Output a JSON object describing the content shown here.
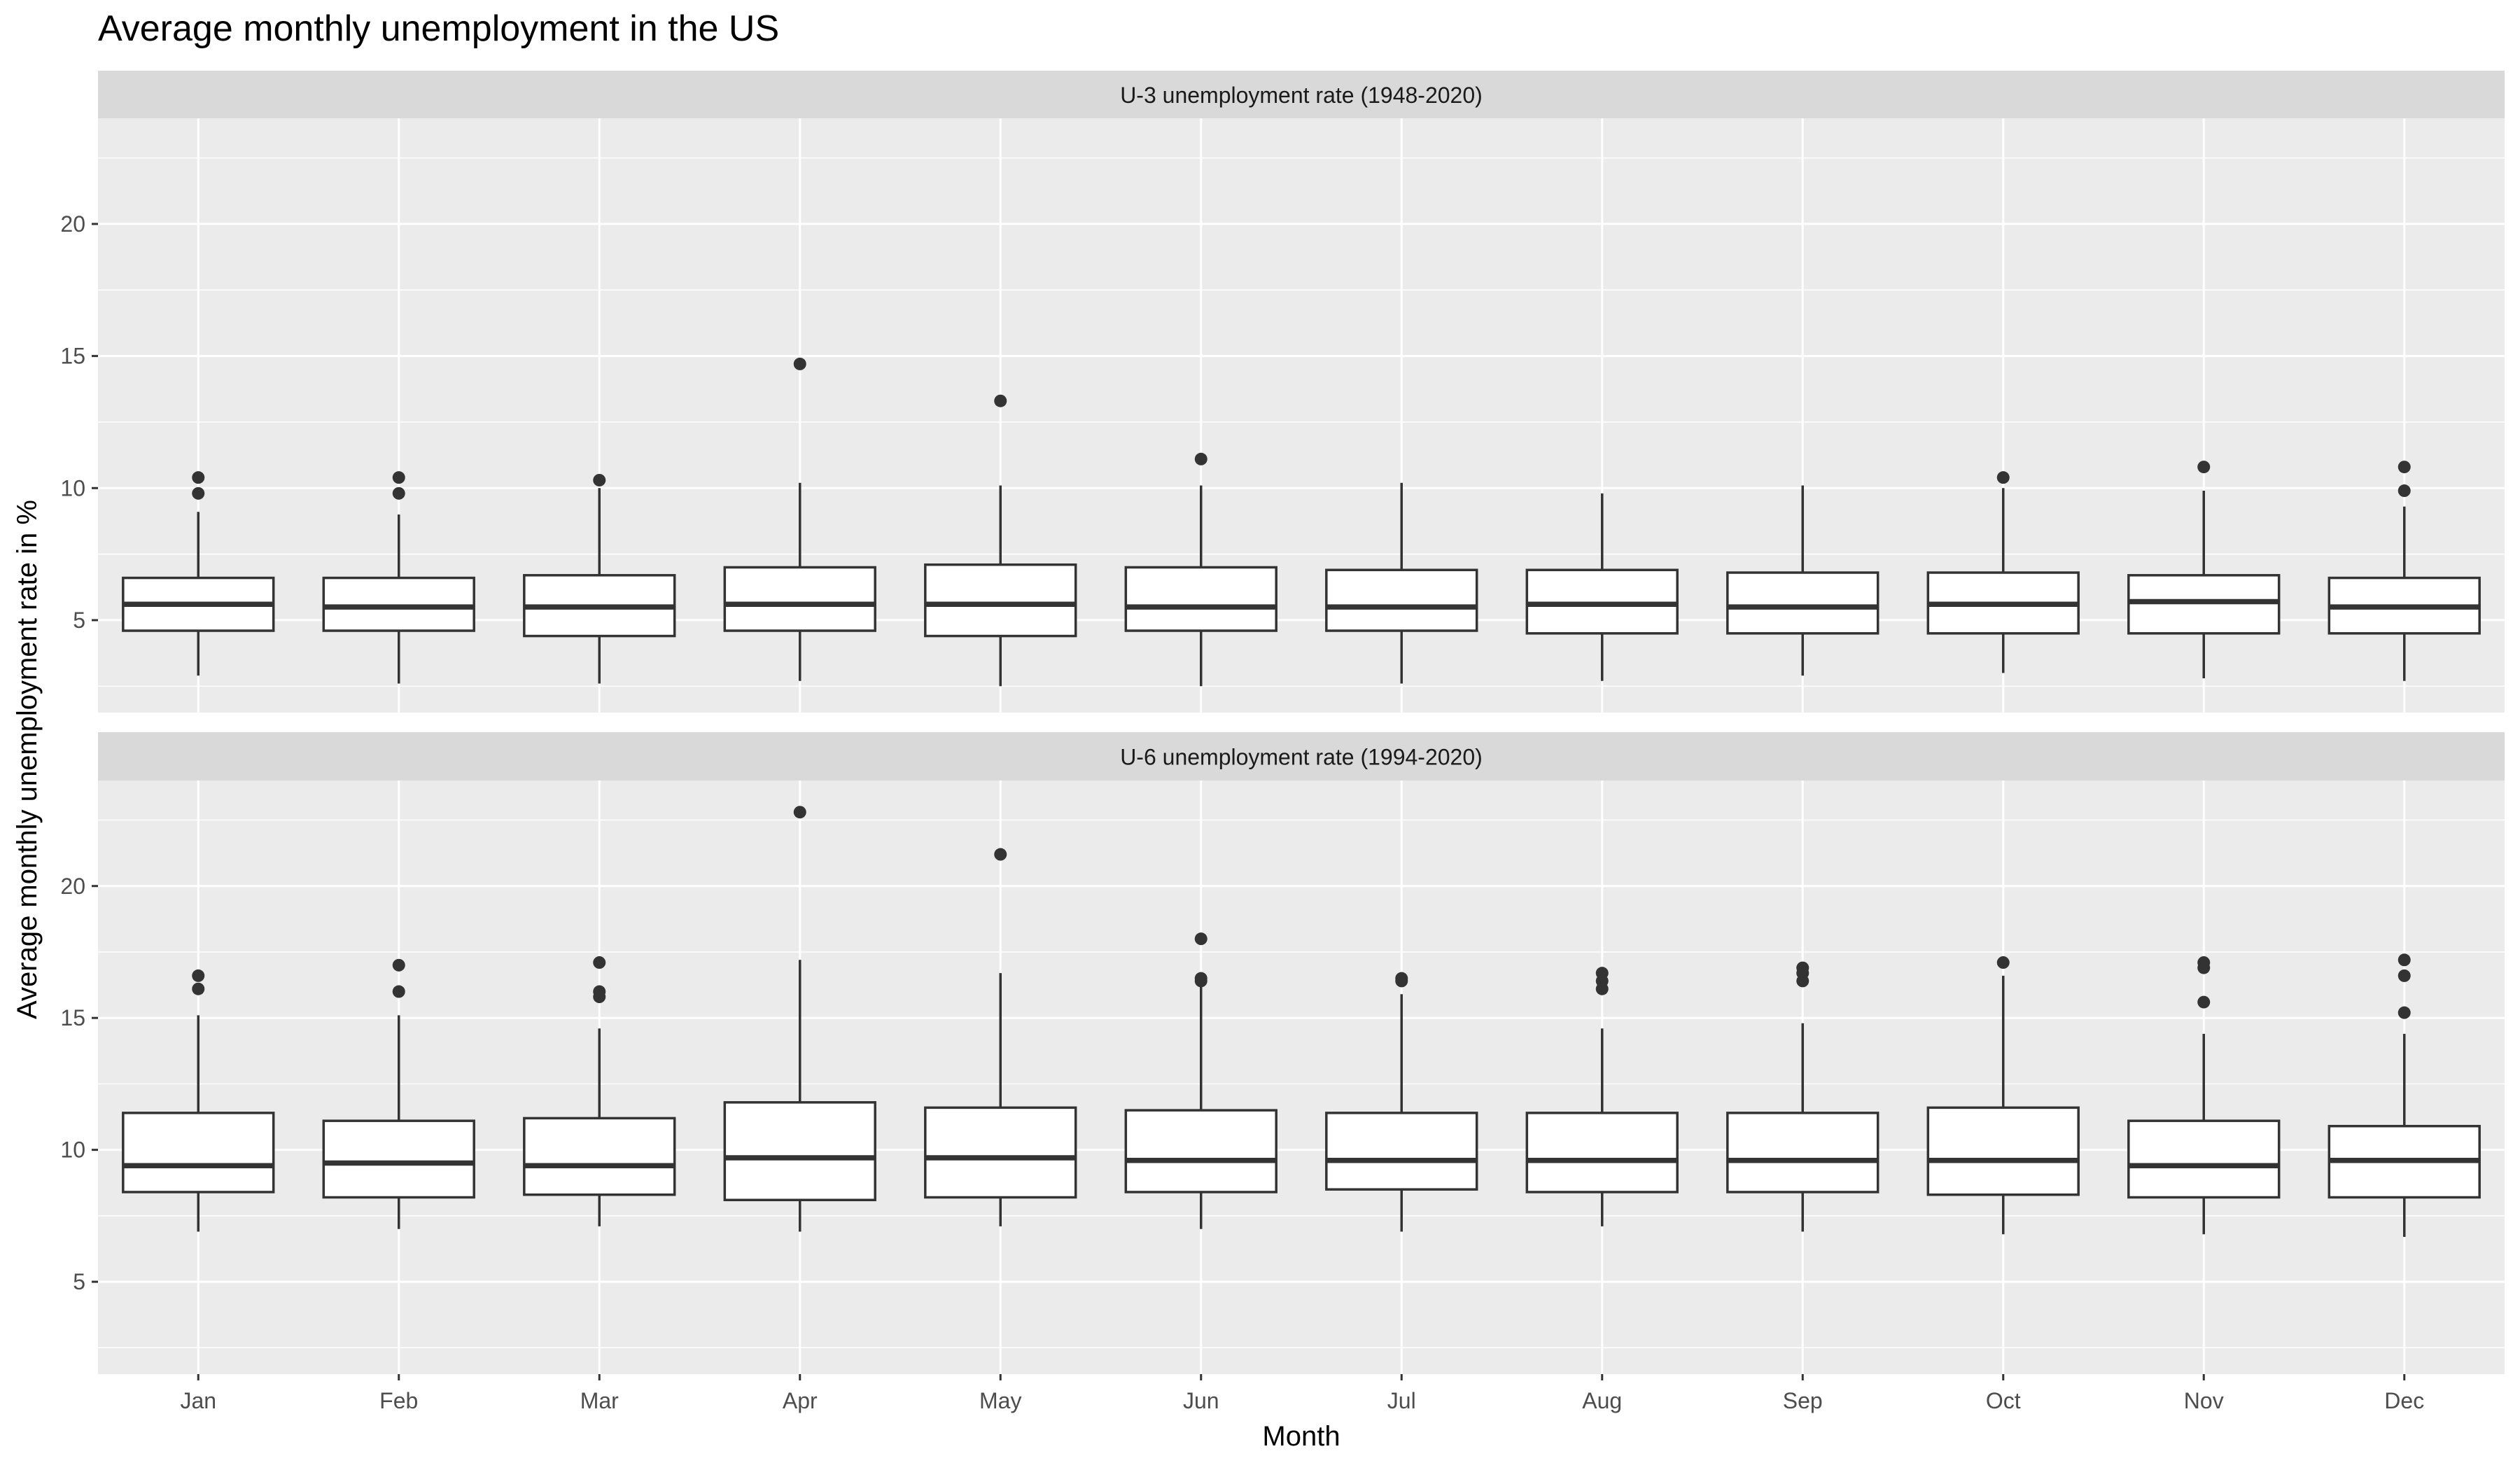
{
  "chart_data": {
    "type": "boxplot",
    "title": "Average monthly unemployment in the US",
    "xlabel": "Month",
    "ylabel": "Average monthly unemployment rate in %",
    "categories": [
      "Jan",
      "Feb",
      "Mar",
      "Apr",
      "May",
      "Jun",
      "Jul",
      "Aug",
      "Sep",
      "Oct",
      "Nov",
      "Dec"
    ],
    "ylim": [
      1.5,
      24
    ],
    "yticks": [
      5,
      10,
      15,
      20
    ],
    "grid": true,
    "panels": [
      {
        "strip_label": "U-3 unemployment rate (1948-2020)",
        "boxes": [
          {
            "q1": 4.6,
            "median": 5.6,
            "q3": 6.6,
            "whisker_low": 2.9,
            "whisker_high": 9.1,
            "outliers": [
              9.8,
              10.4
            ]
          },
          {
            "q1": 4.6,
            "median": 5.5,
            "q3": 6.6,
            "whisker_low": 2.6,
            "whisker_high": 9.0,
            "outliers": [
              9.8,
              10.4
            ]
          },
          {
            "q1": 4.4,
            "median": 5.5,
            "q3": 6.7,
            "whisker_low": 2.6,
            "whisker_high": 10.0,
            "outliers": [
              10.3
            ]
          },
          {
            "q1": 4.6,
            "median": 5.6,
            "q3": 7.0,
            "whisker_low": 2.7,
            "whisker_high": 10.2,
            "outliers": [
              14.7
            ]
          },
          {
            "q1": 4.4,
            "median": 5.6,
            "q3": 7.1,
            "whisker_low": 2.5,
            "whisker_high": 10.1,
            "outliers": [
              13.3
            ]
          },
          {
            "q1": 4.6,
            "median": 5.5,
            "q3": 7.0,
            "whisker_low": 2.5,
            "whisker_high": 10.1,
            "outliers": [
              11.1
            ]
          },
          {
            "q1": 4.6,
            "median": 5.5,
            "q3": 6.9,
            "whisker_low": 2.6,
            "whisker_high": 10.2,
            "outliers": []
          },
          {
            "q1": 4.5,
            "median": 5.6,
            "q3": 6.9,
            "whisker_low": 2.7,
            "whisker_high": 9.8,
            "outliers": []
          },
          {
            "q1": 4.5,
            "median": 5.5,
            "q3": 6.8,
            "whisker_low": 2.9,
            "whisker_high": 10.1,
            "outliers": []
          },
          {
            "q1": 4.5,
            "median": 5.6,
            "q3": 6.8,
            "whisker_low": 3.0,
            "whisker_high": 10.0,
            "outliers": [
              10.4
            ]
          },
          {
            "q1": 4.5,
            "median": 5.7,
            "q3": 6.7,
            "whisker_low": 2.8,
            "whisker_high": 9.9,
            "outliers": [
              10.8
            ]
          },
          {
            "q1": 4.5,
            "median": 5.5,
            "q3": 6.6,
            "whisker_low": 2.7,
            "whisker_high": 9.3,
            "outliers": [
              9.9,
              10.8
            ]
          }
        ]
      },
      {
        "strip_label": "U-6 unemployment rate (1994-2020)",
        "boxes": [
          {
            "q1": 8.4,
            "median": 9.4,
            "q3": 11.4,
            "whisker_low": 6.9,
            "whisker_high": 15.1,
            "outliers": [
              16.1,
              16.6
            ]
          },
          {
            "q1": 8.2,
            "median": 9.5,
            "q3": 11.1,
            "whisker_low": 7.0,
            "whisker_high": 15.1,
            "outliers": [
              16.0,
              17.0
            ]
          },
          {
            "q1": 8.3,
            "median": 9.4,
            "q3": 11.2,
            "whisker_low": 7.1,
            "whisker_high": 14.6,
            "outliers": [
              15.8,
              16.0,
              17.1
            ]
          },
          {
            "q1": 8.1,
            "median": 9.7,
            "q3": 11.8,
            "whisker_low": 6.9,
            "whisker_high": 17.2,
            "outliers": [
              22.8
            ]
          },
          {
            "q1": 8.2,
            "median": 9.7,
            "q3": 11.6,
            "whisker_low": 7.1,
            "whisker_high": 16.7,
            "outliers": [
              21.2
            ]
          },
          {
            "q1": 8.4,
            "median": 9.6,
            "q3": 11.5,
            "whisker_low": 7.0,
            "whisker_high": 16.2,
            "outliers": [
              16.4,
              16.5,
              18.0
            ]
          },
          {
            "q1": 8.5,
            "median": 9.6,
            "q3": 11.4,
            "whisker_low": 6.9,
            "whisker_high": 15.9,
            "outliers": [
              16.4,
              16.5
            ]
          },
          {
            "q1": 8.4,
            "median": 9.6,
            "q3": 11.4,
            "whisker_low": 7.1,
            "whisker_high": 14.6,
            "outliers": [
              16.1,
              16.4,
              16.7
            ]
          },
          {
            "q1": 8.4,
            "median": 9.6,
            "q3": 11.4,
            "whisker_low": 6.9,
            "whisker_high": 14.8,
            "outliers": [
              16.4,
              16.7,
              16.9
            ]
          },
          {
            "q1": 8.3,
            "median": 9.6,
            "q3": 11.6,
            "whisker_low": 6.8,
            "whisker_high": 16.6,
            "outliers": [
              17.1
            ]
          },
          {
            "q1": 8.2,
            "median": 9.4,
            "q3": 11.1,
            "whisker_low": 6.8,
            "whisker_high": 14.4,
            "outliers": [
              15.6,
              16.9,
              17.1
            ]
          },
          {
            "q1": 8.2,
            "median": 9.6,
            "q3": 10.9,
            "whisker_low": 6.7,
            "whisker_high": 14.4,
            "outliers": [
              15.2,
              16.6,
              17.2
            ]
          }
        ]
      }
    ]
  }
}
